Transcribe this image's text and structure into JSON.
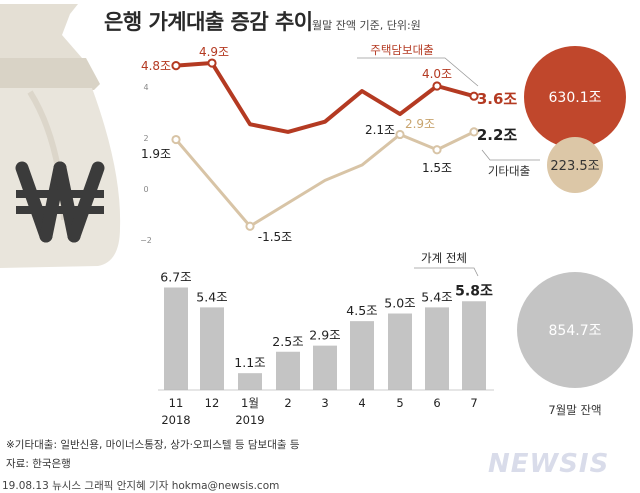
{
  "header": {
    "title": "은행 가계대출 증감 추이",
    "subtitle": "월말 잔액 기준, 단위:원"
  },
  "icon": "money-bag-won-icon",
  "colors": {
    "mortgage": "#b43a22",
    "other": "#d8c4a6",
    "bars": "#c4c4c4",
    "mortgage_bubble": "#c0472c",
    "other_bubble": "#dcc7a7",
    "total_bubble": "#c4c4c4"
  },
  "chart_data": [
    {
      "type": "line",
      "categories": [
        "11",
        "12",
        "1월",
        "2",
        "3",
        "4",
        "5",
        "6",
        "7"
      ],
      "yticks": [
        4,
        2,
        0,
        -2
      ],
      "series": [
        {
          "name": "주택담보대출",
          "values": [
            4.8,
            4.9,
            2.5,
            2.2,
            2.6,
            3.8,
            2.9,
            4.0,
            3.6
          ],
          "labels": [
            "4.8조",
            "4.9조",
            "",
            "",
            "",
            "",
            "",
            "4.0조",
            "3.6조"
          ]
        },
        {
          "name": "기타대출",
          "values": [
            1.9,
            null,
            -1.5,
            null,
            0.3,
            0.9,
            2.1,
            1.5,
            2.2
          ],
          "labels": [
            "1.9조",
            "",
            "-1.5조",
            "",
            "",
            "",
            "2.1조",
            "1.5조",
            "2.2조"
          ]
        }
      ],
      "annotation": {
        "label": "2.9조",
        "value": 2.9,
        "index": 6
      }
    },
    {
      "type": "bar",
      "title": "가계 전체",
      "categories": [
        "11",
        "12",
        "1월",
        "2",
        "3",
        "4",
        "5",
        "6",
        "7"
      ],
      "year_labels": [
        "2018",
        "",
        "2019",
        "",
        "",
        "",
        "",
        "",
        ""
      ],
      "values": [
        6.7,
        5.4,
        1.1,
        2.5,
        2.9,
        4.5,
        5.0,
        5.4,
        5.8
      ],
      "labels": [
        "6.7조",
        "5.4조",
        "1.1조",
        "2.5조",
        "2.9조",
        "4.5조",
        "5.0조",
        "5.4조",
        "5.8조"
      ]
    }
  ],
  "balances": {
    "mortgage": "630.1조",
    "other": "223.5조",
    "total": "854.7조",
    "caption": "7월말 잔액"
  },
  "footnote": "※기타대출: 일반신용, 마이너스통장, 상가·오피스텔 등 담보대출 등",
  "source": "자료: 한국은행",
  "credit": "19.08.13 뉴시스 그래픽 안지혜 기자 hokma@newsis.com",
  "logo": "NEWSIS"
}
